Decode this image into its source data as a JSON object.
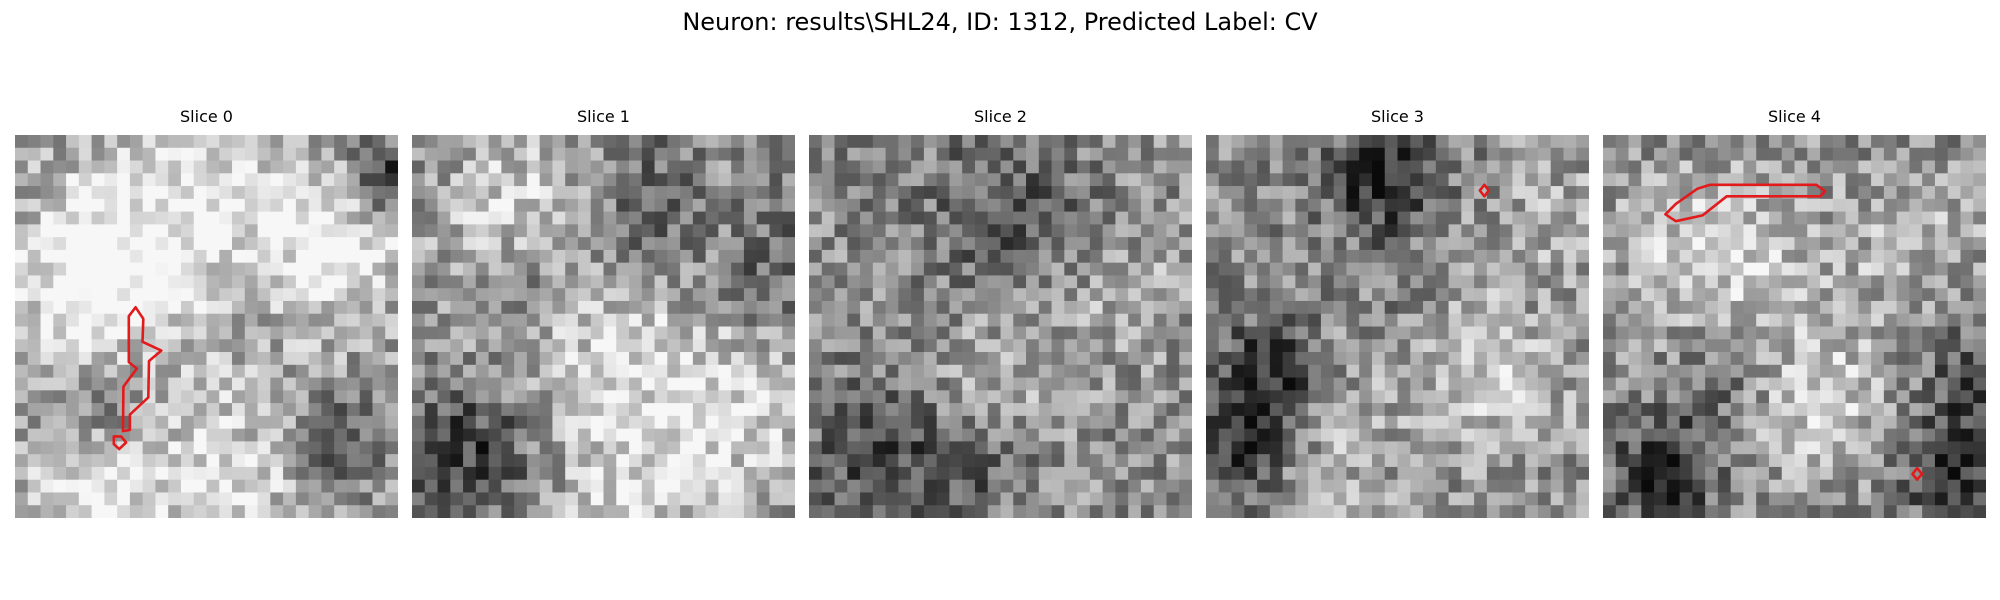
{
  "figure": {
    "title": "Neuron: results\\SHL24, ID: 1312, Predicted Label: CV"
  },
  "image_style": {
    "colormap": "grayscale",
    "grid_size": 30,
    "contour_color": "#e31a1c"
  },
  "slices": [
    {
      "title": "Slice 0",
      "seed": 11,
      "blobs": [
        [
          0.3,
          0.25,
          5,
          0.35
        ],
        [
          0.5,
          0.2,
          6,
          0.3
        ],
        [
          0.7,
          0.3,
          5,
          0.25
        ],
        [
          0.15,
          0.4,
          5,
          0.3
        ],
        [
          0.85,
          0.3,
          4,
          0.25
        ],
        [
          0.5,
          0.9,
          6,
          0.3
        ],
        [
          0.15,
          0.9,
          4,
          0.3
        ],
        [
          0.6,
          0.35,
          4,
          -0.3
        ],
        [
          0.95,
          0.1,
          2,
          -0.4
        ],
        [
          0.2,
          0.7,
          3,
          -0.25
        ],
        [
          0.82,
          0.78,
          2,
          -0.35
        ],
        [
          0.35,
          0.2,
          3,
          -0.2
        ]
      ],
      "contours": [
        [
          [
            0.297,
            0.473
          ],
          [
            0.315,
            0.45
          ],
          [
            0.335,
            0.48
          ],
          [
            0.333,
            0.54
          ],
          [
            0.382,
            0.563
          ],
          [
            0.35,
            0.59
          ],
          [
            0.348,
            0.685
          ],
          [
            0.3,
            0.73
          ],
          [
            0.3,
            0.77
          ],
          [
            0.282,
            0.773
          ],
          [
            0.283,
            0.657
          ],
          [
            0.318,
            0.61
          ],
          [
            0.297,
            0.593
          ]
        ],
        [
          [
            0.258,
            0.787
          ],
          [
            0.277,
            0.787
          ],
          [
            0.29,
            0.803
          ],
          [
            0.272,
            0.82
          ],
          [
            0.258,
            0.807
          ]
        ]
      ]
    },
    {
      "title": "Slice 1",
      "seed": 23,
      "blobs": [
        [
          0.5,
          0.6,
          7,
          0.25
        ],
        [
          0.3,
          0.2,
          5,
          0.3
        ],
        [
          0.85,
          0.7,
          5,
          0.25
        ],
        [
          0.7,
          0.2,
          4,
          0.2
        ],
        [
          0.6,
          0.18,
          4,
          -0.4
        ],
        [
          0.15,
          0.8,
          4,
          -0.35
        ],
        [
          0.9,
          0.35,
          4,
          -0.2
        ],
        [
          0.3,
          0.35,
          3,
          -0.25
        ],
        [
          0.55,
          0.95,
          4,
          0.2
        ]
      ],
      "contours": []
    },
    {
      "title": "Slice 2",
      "seed": 37,
      "blobs": [
        [
          0.5,
          0.2,
          5,
          -0.2
        ],
        [
          0.15,
          0.8,
          4,
          -0.25
        ],
        [
          0.45,
          0.6,
          4,
          0.15
        ],
        [
          0.8,
          0.4,
          4,
          0.15
        ],
        [
          0.4,
          0.85,
          3,
          -0.2
        ]
      ],
      "contours": []
    },
    {
      "title": "Slice 3",
      "seed": 51,
      "blobs": [
        [
          0.45,
          0.1,
          3,
          -0.45
        ],
        [
          0.15,
          0.6,
          3,
          -0.35
        ],
        [
          0.08,
          0.8,
          3,
          -0.4
        ],
        [
          0.55,
          0.45,
          5,
          0.15
        ],
        [
          0.75,
          0.65,
          4,
          0.2
        ],
        [
          0.5,
          0.4,
          3,
          -0.2
        ],
        [
          0.9,
          0.2,
          3,
          0.15
        ],
        [
          0.3,
          0.85,
          4,
          0.15
        ]
      ],
      "contours": [
        [
          [
            0.715,
            0.145
          ],
          [
            0.727,
            0.13
          ],
          [
            0.738,
            0.145
          ],
          [
            0.727,
            0.16
          ]
        ]
      ]
    },
    {
      "title": "Slice 4",
      "seed": 67,
      "blobs": [
        [
          0.25,
          0.3,
          5,
          0.25
        ],
        [
          0.5,
          0.5,
          6,
          0.1
        ],
        [
          0.15,
          0.85,
          3,
          -0.4
        ],
        [
          0.9,
          0.85,
          3,
          -0.4
        ],
        [
          0.55,
          0.7,
          4,
          0.2
        ],
        [
          0.8,
          0.25,
          4,
          0.15
        ],
        [
          0.3,
          0.6,
          3,
          -0.2
        ],
        [
          0.95,
          0.6,
          3,
          -0.25
        ]
      ],
      "contours": [
        [
          [
            0.163,
            0.207
          ],
          [
            0.19,
            0.18
          ],
          [
            0.247,
            0.14
          ],
          [
            0.28,
            0.13
          ],
          [
            0.557,
            0.13
          ],
          [
            0.58,
            0.147
          ],
          [
            0.567,
            0.16
          ],
          [
            0.323,
            0.16
          ],
          [
            0.26,
            0.21
          ],
          [
            0.19,
            0.225
          ]
        ],
        [
          [
            0.808,
            0.885
          ],
          [
            0.82,
            0.87
          ],
          [
            0.833,
            0.885
          ],
          [
            0.82,
            0.9
          ]
        ]
      ]
    }
  ]
}
